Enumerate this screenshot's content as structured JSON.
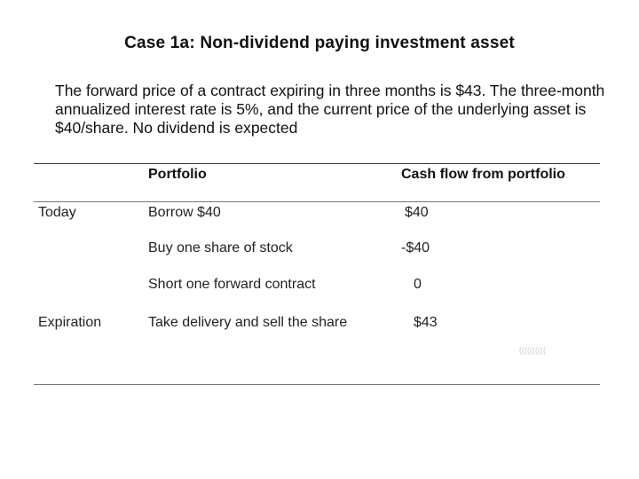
{
  "title": "Case 1a: Non-dividend paying investment asset",
  "intro": "The forward price of a contract expiring in three months is $43. The three-month annualized interest rate is 5%, and the current price of the underlying asset is $40/share. No dividend is expected",
  "table": {
    "headers": [
      "",
      "Portfolio",
      "Cash flow from portfolio"
    ],
    "rows": [
      {
        "time": "Today",
        "action": "Borrow $40",
        "cash_flow": "$40"
      },
      {
        "time": "",
        "action": "Buy one share of stock",
        "cash_flow": "-$40"
      },
      {
        "time": "",
        "action": "Short one forward contract",
        "cash_flow": "0"
      },
      {
        "time": "Expiration",
        "action": "Take delivery and sell the share",
        "cash_flow": "$43"
      }
    ]
  },
  "watermark": "(((((((((("
}
